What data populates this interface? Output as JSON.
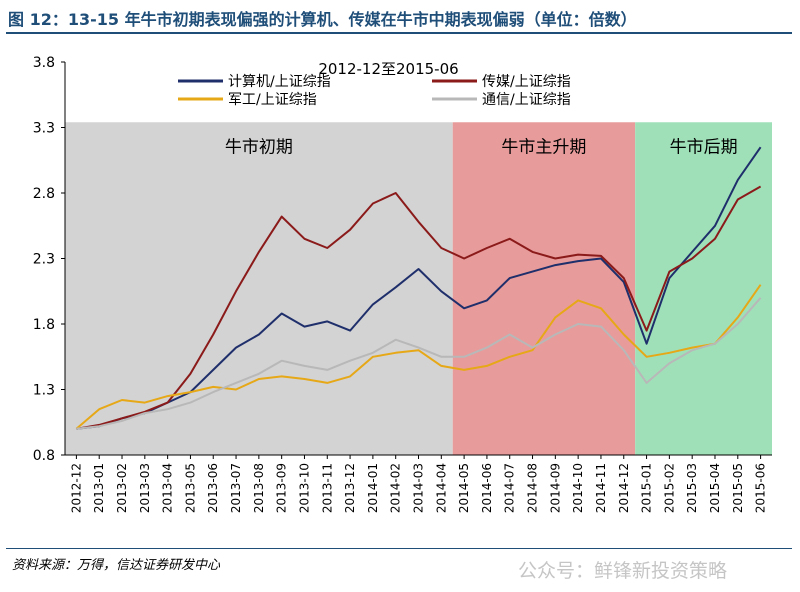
{
  "figure": {
    "title": "图 12：13-15 年牛市初期表现偏强的计算机、传媒在牛市中期表现偏弱（单位：倍数）",
    "source": "资料来源：万得，信达证券研发中心",
    "watermark": "公众号：鲜锋新投资策略"
  },
  "chart_data": {
    "type": "line",
    "subtitle": "2012-12至2015-06",
    "ylim": [
      0.8,
      3.8
    ],
    "yticks": [
      "0.8",
      "1.3",
      "1.8",
      "2.3",
      "2.8",
      "3.3",
      "3.8"
    ],
    "x_categories": [
      "2012-12",
      "2013-01",
      "2013-02",
      "2013-03",
      "2013-04",
      "2013-05",
      "2013-06",
      "2013-07",
      "2013-08",
      "2013-09",
      "2013-10",
      "2013-11",
      "2013-12",
      "2014-01",
      "2014-02",
      "2014-03",
      "2014-04",
      "2014-05",
      "2014-06",
      "2014-07",
      "2014-08",
      "2014-09",
      "2014-10",
      "2014-11",
      "2014-12",
      "2015-01",
      "2015-02",
      "2015-03",
      "2015-04",
      "2015-05",
      "2015-06"
    ],
    "regions": [
      {
        "label": "牛市初期",
        "start": "2012-12",
        "end": "2014-05",
        "color": "#D3D3D3"
      },
      {
        "label": "牛市主升期",
        "start": "2014-05",
        "end": "2015-01",
        "color": "#E89B9B"
      },
      {
        "label": "牛市后期",
        "start": "2015-01",
        "end": "2015-07",
        "color": "#9FE0B9"
      }
    ],
    "region_ylim_top": 3.34,
    "series": [
      {
        "name": "计算机/上证综指",
        "color": "#1F2F6B",
        "x": [
          "2012-12",
          "2013-01",
          "2013-02",
          "2013-03",
          "2013-04",
          "2013-05",
          "2013-06",
          "2013-07",
          "2013-08",
          "2013-09",
          "2013-10",
          "2013-11",
          "2013-12",
          "2014-01",
          "2014-02",
          "2014-03",
          "2014-04",
          "2014-05",
          "2014-06",
          "2014-07",
          "2014-08",
          "2014-09",
          "2014-10",
          "2014-11",
          "2014-12",
          "2015-01",
          "2015-02",
          "2015-03",
          "2015-04",
          "2015-05",
          "2015-06"
        ],
        "values": [
          1.0,
          1.02,
          1.08,
          1.12,
          1.2,
          1.28,
          1.45,
          1.62,
          1.72,
          1.88,
          1.78,
          1.82,
          1.75,
          1.95,
          2.08,
          2.22,
          2.05,
          1.92,
          1.98,
          2.15,
          2.2,
          2.25,
          2.28,
          2.3,
          2.12,
          1.65,
          2.15,
          2.35,
          2.55,
          2.9,
          3.15
        ]
      },
      {
        "name": "传媒/上证综指",
        "color": "#8B1A1A",
        "x": [
          "2012-12",
          "2013-01",
          "2013-02",
          "2013-03",
          "2013-04",
          "2013-05",
          "2013-06",
          "2013-07",
          "2013-08",
          "2013-09",
          "2013-10",
          "2013-11",
          "2013-12",
          "2014-01",
          "2014-02",
          "2014-03",
          "2014-04",
          "2014-05",
          "2014-06",
          "2014-07",
          "2014-08",
          "2014-09",
          "2014-10",
          "2014-11",
          "2014-12",
          "2015-01",
          "2015-02",
          "2015-03",
          "2015-04",
          "2015-05",
          "2015-06"
        ],
        "values": [
          1.0,
          1.03,
          1.08,
          1.13,
          1.2,
          1.42,
          1.72,
          2.05,
          2.35,
          2.62,
          2.45,
          2.38,
          2.52,
          2.72,
          2.8,
          2.58,
          2.38,
          2.3,
          2.38,
          2.45,
          2.35,
          2.3,
          2.33,
          2.32,
          2.15,
          1.75,
          2.2,
          2.3,
          2.45,
          2.75,
          2.85
        ]
      },
      {
        "name": "军工/上证综指",
        "color": "#E6A817",
        "x": [
          "2012-12",
          "2013-01",
          "2013-02",
          "2013-03",
          "2013-04",
          "2013-05",
          "2013-06",
          "2013-07",
          "2013-08",
          "2013-09",
          "2013-10",
          "2013-11",
          "2013-12",
          "2014-01",
          "2014-02",
          "2014-03",
          "2014-04",
          "2014-05",
          "2014-06",
          "2014-07",
          "2014-08",
          "2014-09",
          "2014-10",
          "2014-11",
          "2014-12",
          "2015-01",
          "2015-02",
          "2015-03",
          "2015-04",
          "2015-05",
          "2015-06"
        ],
        "values": [
          1.0,
          1.15,
          1.22,
          1.2,
          1.25,
          1.28,
          1.32,
          1.3,
          1.38,
          1.4,
          1.38,
          1.35,
          1.4,
          1.55,
          1.58,
          1.6,
          1.48,
          1.45,
          1.48,
          1.55,
          1.6,
          1.85,
          1.98,
          1.92,
          1.72,
          1.55,
          1.58,
          1.62,
          1.65,
          1.85,
          2.1
        ]
      },
      {
        "name": "通信/上证综指",
        "color": "#B8B8B8",
        "x": [
          "2012-12",
          "2013-01",
          "2013-02",
          "2013-03",
          "2013-04",
          "2013-05",
          "2013-06",
          "2013-07",
          "2013-08",
          "2013-09",
          "2013-10",
          "2013-11",
          "2013-12",
          "2014-01",
          "2014-02",
          "2014-03",
          "2014-04",
          "2014-05",
          "2014-06",
          "2014-07",
          "2014-08",
          "2014-09",
          "2014-10",
          "2014-11",
          "2014-12",
          "2015-01",
          "2015-02",
          "2015-03",
          "2015-04",
          "2015-05",
          "2015-06"
        ],
        "values": [
          1.0,
          1.02,
          1.06,
          1.12,
          1.15,
          1.2,
          1.28,
          1.35,
          1.42,
          1.52,
          1.48,
          1.45,
          1.52,
          1.58,
          1.68,
          1.62,
          1.55,
          1.55,
          1.62,
          1.72,
          1.62,
          1.72,
          1.8,
          1.78,
          1.6,
          1.35,
          1.5,
          1.6,
          1.65,
          1.8,
          2.0
        ]
      }
    ]
  }
}
